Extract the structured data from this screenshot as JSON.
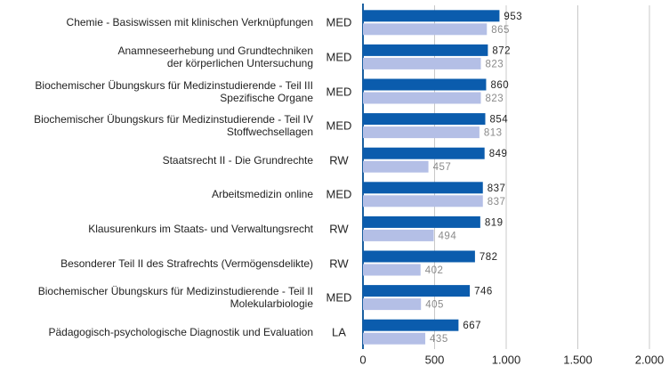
{
  "chart_data": {
    "type": "hbar",
    "categories": [
      "Chemie - Basiswissen mit klinischen Verknüpfungen",
      "Anamneseerhebung und Grundtechniken\nder körperlichen Untersuchung",
      "Biochemischer Übungskurs für Medizinstudierende - Teil III\nSpezifische Organe",
      "Biochemischer Übungskurs für Medizinstudierende - Teil IV\nStoffwechsellagen",
      "Staatsrecht II - Die Grundrechte",
      "Arbeitsmedizin online",
      "Klausurenkurs im Staats- und Verwaltungsrecht",
      "Besonderer Teil II des Strafrechts (Vermögensdelikte)",
      "Biochemischer Übungskurs für Medizinstudierende - Teil II\nMolekularbiologie",
      "Pädagogisch-psychologische Diagnostik und Evaluation"
    ],
    "groups": [
      "MED",
      "MED",
      "MED",
      "MED",
      "RW",
      "MED",
      "RW",
      "RW",
      "MED",
      "LA"
    ],
    "series": [
      {
        "color": "#0b5cad",
        "label_color": "#222222",
        "values": [
          953,
          872,
          860,
          854,
          849,
          837,
          819,
          782,
          746,
          667
        ]
      },
      {
        "color": "#b4bfe6",
        "label_color": "#8a8a8a",
        "values": [
          865,
          823,
          823,
          813,
          457,
          837,
          494,
          402,
          405,
          435
        ]
      }
    ],
    "xlim": [
      0,
      2000
    ],
    "xticks": [
      0,
      500,
      {
        "value": 1000,
        "label": "1.000"
      },
      {
        "value": 1500,
        "label": "1.500"
      },
      {
        "value": 2000,
        "label": "2.000"
      }
    ],
    "grid": true
  }
}
